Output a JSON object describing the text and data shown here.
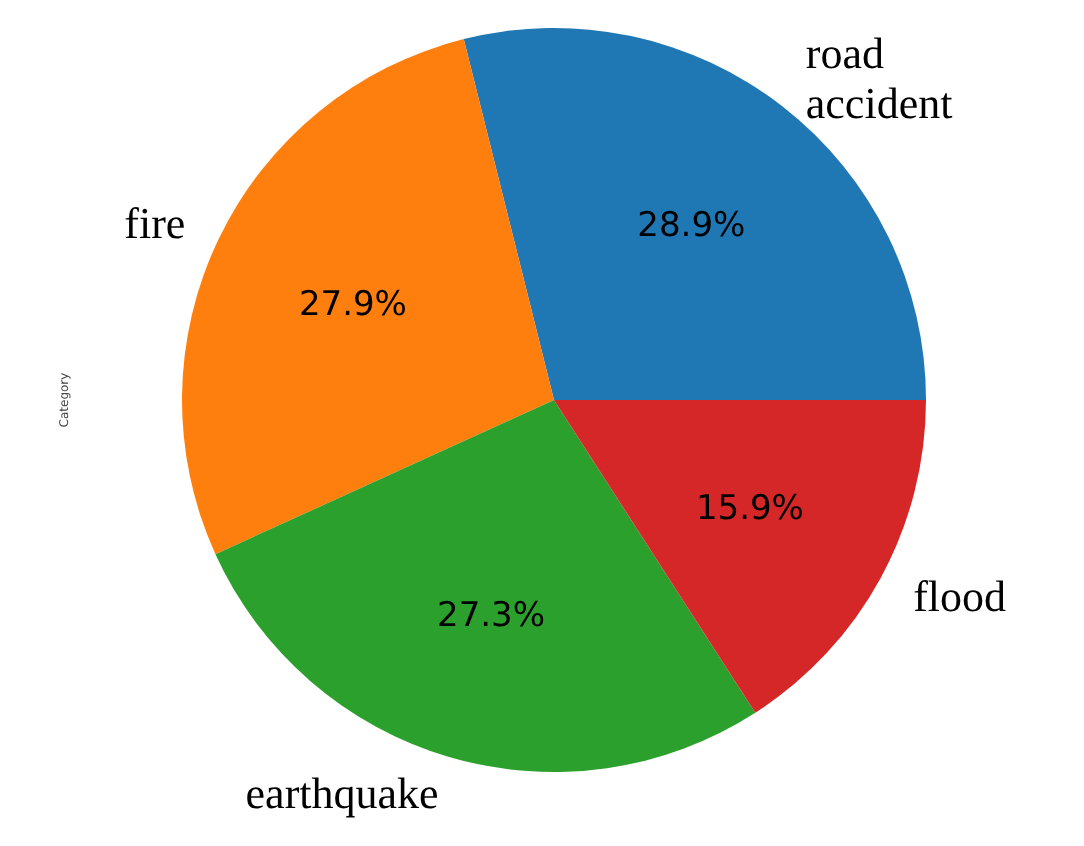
{
  "chart_data": {
    "type": "pie",
    "ylabel": "Category",
    "categories": [
      "road\naccident",
      "fire",
      "earthquake",
      "flood"
    ],
    "values": [
      28.9,
      27.9,
      27.3,
      15.9
    ],
    "colors": [
      "#1f77b4",
      "#ff7f0e",
      "#2ca02c",
      "#d62728"
    ],
    "value_labels": [
      "28.9%",
      "27.9%",
      "27.3%",
      "15.9%"
    ]
  }
}
